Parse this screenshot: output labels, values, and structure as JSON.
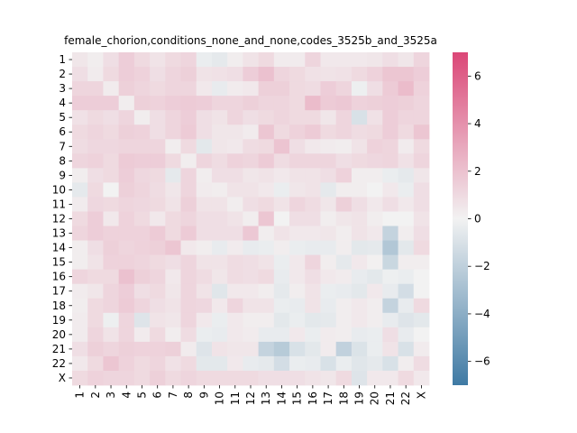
{
  "chart_data": {
    "type": "heatmap",
    "title": "female_chorion,conditions_none_and_none,codes_3525b_and_3525a",
    "xlabel": "",
    "ylabel": "",
    "categories_x": [
      "1",
      "2",
      "3",
      "4",
      "5",
      "6",
      "7",
      "8",
      "9",
      "10",
      "11",
      "12",
      "13",
      "14",
      "15",
      "16",
      "17",
      "18",
      "19",
      "20",
      "21",
      "22",
      "X"
    ],
    "categories_y": [
      "1",
      "2",
      "3",
      "4",
      "5",
      "6",
      "7",
      "8",
      "9",
      "10",
      "11",
      "12",
      "13",
      "14",
      "15",
      "16",
      "17",
      "18",
      "19",
      "20",
      "21",
      "22",
      "X"
    ],
    "colorbar": {
      "range": [
        -7,
        7
      ],
      "ticks": [
        -6,
        -4,
        -2,
        0,
        2,
        4,
        6
      ],
      "tick_labels": [
        "−6",
        "−4",
        "−2",
        "0",
        "2",
        "4",
        "6"
      ],
      "colors": {
        "negative": "#3f7aa4",
        "center": "#f2f2f2",
        "positive": "#db4777"
      }
    },
    "values": [
      [
        0.5,
        0.2,
        0.8,
        1.5,
        1.0,
        0.6,
        1.0,
        1.2,
        -0.3,
        -0.5,
        0.2,
        0.6,
        1.0,
        0.3,
        0.3,
        1.2,
        0.4,
        0.4,
        0.4,
        0.5,
        0.8,
        0.5,
        1.2
      ],
      [
        0.8,
        0.3,
        1.0,
        1.5,
        1.3,
        0.8,
        1.2,
        1.4,
        0.6,
        0.7,
        0.8,
        1.5,
        2.0,
        1.2,
        1.0,
        0.7,
        0.6,
        0.7,
        1.0,
        1.3,
        1.8,
        1.8,
        1.5
      ],
      [
        1.2,
        1.2,
        0.3,
        1.4,
        1.2,
        1.0,
        1.2,
        1.2,
        0.4,
        -0.4,
        0.3,
        0.4,
        1.4,
        1.4,
        1.0,
        0.9,
        1.5,
        1.2,
        -0.2,
        0.8,
        1.6,
        2.2,
        1.3
      ],
      [
        1.5,
        1.5,
        1.5,
        0.2,
        1.4,
        1.3,
        1.5,
        1.6,
        1.5,
        1.2,
        1.2,
        1.4,
        1.2,
        1.2,
        1.0,
        2.2,
        1.6,
        1.7,
        1.3,
        1.4,
        1.5,
        1.4,
        1.2
      ],
      [
        0.7,
        1.0,
        0.8,
        1.2,
        0.2,
        0.8,
        1.2,
        1.5,
        0.8,
        0.6,
        1.2,
        0.8,
        1.0,
        1.2,
        1.0,
        1.0,
        0.5,
        1.2,
        -1.0,
        0.7,
        1.5,
        1.2,
        1.2
      ],
      [
        1.0,
        1.2,
        1.0,
        1.4,
        1.3,
        0.8,
        1.2,
        1.6,
        0.8,
        0.5,
        0.5,
        0.3,
        1.8,
        1.0,
        1.3,
        1.6,
        1.0,
        1.2,
        0.9,
        1.0,
        1.5,
        1.0,
        1.8
      ],
      [
        0.9,
        1.1,
        1.1,
        1.2,
        1.2,
        1.2,
        0.2,
        1.0,
        -0.6,
        0.5,
        0.4,
        0.9,
        1.0,
        1.9,
        0.8,
        0.4,
        0.3,
        0.2,
        0.6,
        1.3,
        1.2,
        0.3,
        1.0
      ],
      [
        1.2,
        1.3,
        1.0,
        1.6,
        1.5,
        1.5,
        1.0,
        0.2,
        1.2,
        0.9,
        1.3,
        1.2,
        1.6,
        0.9,
        1.2,
        1.2,
        1.2,
        0.8,
        1.0,
        1.1,
        1.2,
        0.7,
        1.2
      ],
      [
        0.2,
        0.8,
        1.0,
        1.5,
        1.1,
        1.0,
        -0.5,
        1.2,
        0.2,
        0.8,
        0.8,
        0.5,
        0.6,
        0.4,
        0.6,
        0.6,
        0.8,
        1.3,
        0.2,
        0.2,
        -0.3,
        -0.5,
        0.5
      ],
      [
        -0.5,
        1.0,
        0.0,
        1.4,
        1.2,
        0.9,
        0.5,
        1.2,
        0.3,
        0.2,
        0.6,
        0.6,
        0.4,
        -0.3,
        0.5,
        0.6,
        -0.5,
        0.2,
        0.2,
        0.0,
        0.4,
        -0.3,
        0.8
      ],
      [
        0.3,
        1.1,
        1.0,
        1.2,
        1.1,
        1.0,
        0.6,
        1.4,
        0.6,
        0.6,
        0.2,
        0.8,
        1.0,
        0.6,
        1.2,
        0.9,
        0.5,
        1.4,
        0.8,
        0.4,
        0.8,
        0.4,
        0.8
      ],
      [
        1.0,
        1.5,
        0.4,
        1.3,
        1.0,
        0.4,
        1.0,
        1.2,
        0.8,
        0.8,
        0.6,
        0.2,
        1.8,
        0.0,
        0.8,
        0.8,
        0.2,
        0.5,
        0.6,
        0.2,
        0.0,
        0.0,
        0.6
      ],
      [
        1.2,
        1.5,
        1.3,
        1.3,
        1.3,
        1.6,
        1.0,
        1.6,
        0.8,
        0.8,
        0.8,
        1.7,
        0.2,
        0.6,
        0.4,
        0.4,
        0.5,
        0.2,
        0.6,
        0.4,
        -1.8,
        0.2,
        0.8
      ],
      [
        0.2,
        0.8,
        1.4,
        1.2,
        1.3,
        1.4,
        1.8,
        0.4,
        0.2,
        -0.4,
        0.3,
        -0.4,
        -0.3,
        0.2,
        -0.3,
        -0.4,
        -0.4,
        0.2,
        -0.6,
        -0.5,
        -2.5,
        -0.6,
        1.0
      ],
      [
        0.2,
        0.6,
        1.3,
        1.3,
        1.2,
        1.0,
        0.8,
        1.2,
        0.6,
        0.6,
        0.9,
        0.8,
        0.6,
        -0.3,
        0.4,
        1.2,
        0.2,
        -0.5,
        0.4,
        0.1,
        -1.6,
        0.2,
        0.2
      ],
      [
        1.2,
        1.0,
        1.0,
        2.0,
        1.4,
        1.2,
        0.4,
        1.2,
        0.9,
        0.5,
        0.9,
        0.8,
        1.0,
        -0.4,
        0.4,
        0.8,
        0.4,
        0.3,
        -0.4,
        -0.6,
        -0.2,
        -0.3,
        0.0
      ],
      [
        0.3,
        0.5,
        1.2,
        1.5,
        0.8,
        1.0,
        0.5,
        1.2,
        0.6,
        -0.7,
        0.4,
        0.4,
        0.2,
        -0.5,
        0.2,
        0.6,
        -0.3,
        -0.4,
        -0.6,
        0.4,
        -0.4,
        -1.2,
        0.0
      ],
      [
        0.2,
        1.0,
        1.2,
        1.6,
        1.2,
        0.8,
        0.6,
        1.2,
        1.1,
        0.4,
        1.2,
        0.6,
        0.6,
        -0.3,
        -0.4,
        0.6,
        -0.4,
        0.2,
        0.4,
        0.2,
        -1.8,
        -0.4,
        1.0
      ],
      [
        0.3,
        1.0,
        -0.2,
        1.2,
        -0.8,
        0.6,
        0.5,
        1.2,
        0.4,
        -0.3,
        0.4,
        0.2,
        0.2,
        -0.6,
        -0.3,
        -0.6,
        -0.5,
        0.2,
        0.4,
        0.2,
        -0.4,
        -0.8,
        -0.6
      ],
      [
        0.3,
        1.2,
        0.6,
        1.2,
        0.3,
        1.0,
        0.2,
        0.9,
        -0.3,
        -0.4,
        0.4,
        0.3,
        -0.4,
        -0.4,
        0.4,
        -0.3,
        0.3,
        0.2,
        -0.4,
        -0.3,
        0.8,
        -0.4,
        0.0
      ],
      [
        0.8,
        1.4,
        1.2,
        1.4,
        1.3,
        1.3,
        1.4,
        0.3,
        -0.8,
        0.6,
        0.5,
        0.5,
        -1.8,
        -2.3,
        -1.0,
        -0.6,
        0.3,
        -1.9,
        -0.9,
        -0.3,
        0.6,
        -1.0,
        0.3
      ],
      [
        0.4,
        1.0,
        1.8,
        1.3,
        1.0,
        1.2,
        0.7,
        1.0,
        -0.6,
        -0.6,
        0.4,
        -0.4,
        -0.5,
        -1.2,
        -0.3,
        -0.4,
        -1.0,
        -0.3,
        -0.7,
        -0.5,
        -1.0,
        0.2,
        0.9
      ],
      [
        1.0,
        1.3,
        1.2,
        1.2,
        1.0,
        1.4,
        1.0,
        1.2,
        1.0,
        1.0,
        1.0,
        1.0,
        0.8,
        0.8,
        0.8,
        0.6,
        0.5,
        1.0,
        -0.8,
        0.4,
        0.4,
        1.0,
        0.4
      ]
    ]
  }
}
